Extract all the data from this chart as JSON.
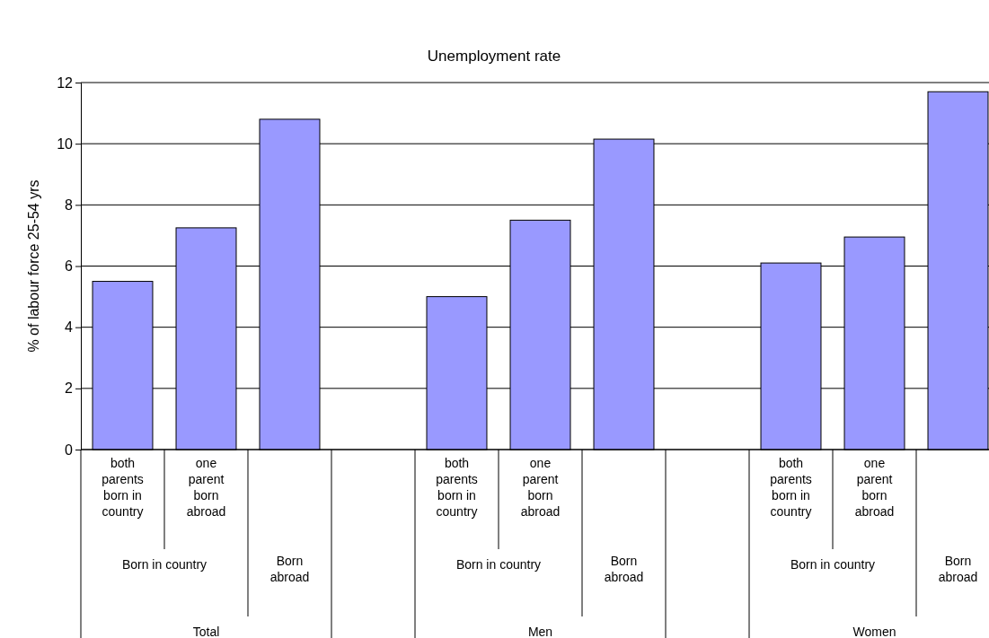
{
  "chart_data": {
    "type": "bar",
    "title": "Unemployment rate",
    "ylabel": "% of labour force 25-54 yrs",
    "categories": [
      "both parents born in country",
      "one parent born abroad",
      null,
      null,
      "both parents born in country",
      "one parent born abroad",
      null,
      null,
      "both parents born in country",
      "one parent born abroad",
      null
    ],
    "values": [
      5.5,
      7.25,
      10.8,
      null,
      5.0,
      7.5,
      10.15,
      null,
      6.1,
      6.95,
      11.7
    ],
    "color": "#9999ff",
    "annotations": [
      "Born in country",
      "Born abroad",
      "Total",
      "Born in country",
      "Born abroad",
      "Men",
      "Born in country",
      "Born abroad",
      "Women"
    ],
    "ylim": [
      0,
      12
    ],
    "yticks": [
      0,
      2,
      4,
      6,
      8,
      10,
      12
    ],
    "grid": "y"
  }
}
